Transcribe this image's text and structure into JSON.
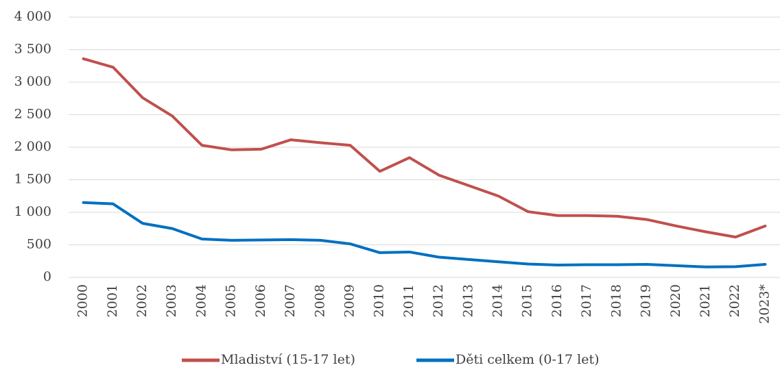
{
  "chart_data": {
    "type": "line",
    "categories": [
      "2000",
      "2001",
      "2002",
      "2003",
      "2004",
      "2005",
      "2006",
      "2007",
      "2008",
      "2009",
      "2010",
      "2011",
      "2012",
      "2013",
      "2014",
      "2015",
      "2016",
      "2017",
      "2018",
      "2019",
      "2020",
      "2021",
      "2022",
      "2023*"
    ],
    "series": [
      {
        "name": "Mladiství (15-17 let)",
        "color": "#c0504d",
        "values": [
          3360,
          3230,
          2760,
          2480,
          2030,
          1960,
          1970,
          2115,
          2070,
          2030,
          1630,
          1840,
          1570,
          1410,
          1250,
          1010,
          950,
          950,
          940,
          890,
          790,
          700,
          620,
          790
        ]
      },
      {
        "name": "Děti celkem (0-17 let)",
        "color": "#0070c0",
        "values": [
          1150,
          1130,
          830,
          750,
          590,
          570,
          575,
          580,
          570,
          515,
          380,
          390,
          310,
          275,
          240,
          205,
          190,
          195,
          195,
          200,
          180,
          160,
          165,
          200
        ]
      }
    ],
    "ylim": [
      0,
      4000
    ],
    "yticks": [
      0,
      500,
      {
        "value": 1000,
        "label": "1 000"
      },
      {
        "value": 1500,
        "label": "1 500"
      },
      {
        "value": 2000,
        "label": "2 000"
      },
      {
        "value": 2500,
        "label": "2 500"
      },
      {
        "value": 3000,
        "label": "3 000"
      },
      {
        "value": 3500,
        "label": "3 500"
      },
      {
        "value": 4000,
        "label": "4 000"
      }
    ],
    "grid": true,
    "legend": "bottom"
  }
}
